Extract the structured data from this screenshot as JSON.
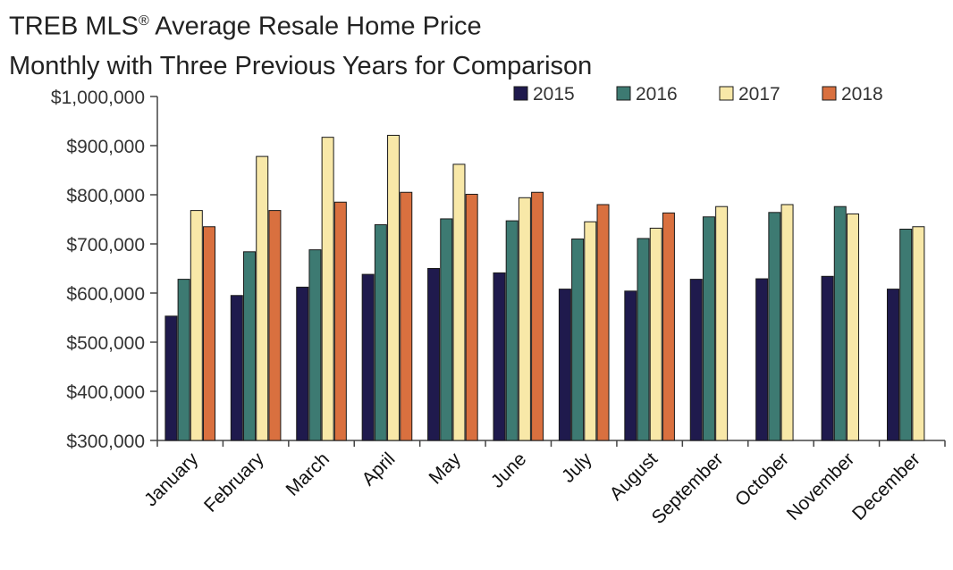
{
  "chart_data": {
    "type": "bar",
    "title": "TREB MLS® Average Resale Home Price",
    "title_main": "TREB MLS",
    "title_mark": "®",
    "title_rest": " Average Resale Home Price",
    "subtitle": "Monthly with Three Previous Years for Comparison",
    "xlabel": "",
    "ylabel": "",
    "ylim": [
      300000,
      1000000
    ],
    "yticks": [
      300000,
      400000,
      500000,
      600000,
      700000,
      800000,
      900000,
      1000000
    ],
    "ytick_labels": [
      "$300,000",
      "$400,000",
      "$500,000",
      "$600,000",
      "$700,000",
      "$800,000",
      "$900,000",
      "$1,000,000"
    ],
    "grid": false,
    "legend_position": "top-right",
    "categories": [
      "January",
      "February",
      "March",
      "April",
      "May",
      "June",
      "July",
      "August",
      "September",
      "October",
      "November",
      "December"
    ],
    "series": [
      {
        "name": "2015",
        "color": "#1f1a4d",
        "values": [
          553000,
          595000,
          612000,
          638000,
          650000,
          641000,
          608000,
          604000,
          628000,
          629000,
          634000,
          608000
        ]
      },
      {
        "name": "2016",
        "color": "#3d7a72",
        "values": [
          628000,
          684000,
          688000,
          739000,
          751000,
          747000,
          710000,
          711000,
          755000,
          764000,
          776000,
          730000
        ]
      },
      {
        "name": "2017",
        "color": "#f8e8a8",
        "values": [
          768000,
          878000,
          917000,
          921000,
          862000,
          794000,
          745000,
          732000,
          776000,
          780000,
          761000,
          735000
        ]
      },
      {
        "name": "2018",
        "color": "#d9703f",
        "values": [
          735000,
          768000,
          785000,
          805000,
          801000,
          805000,
          780000,
          763000,
          null,
          null,
          null,
          null
        ]
      }
    ]
  }
}
